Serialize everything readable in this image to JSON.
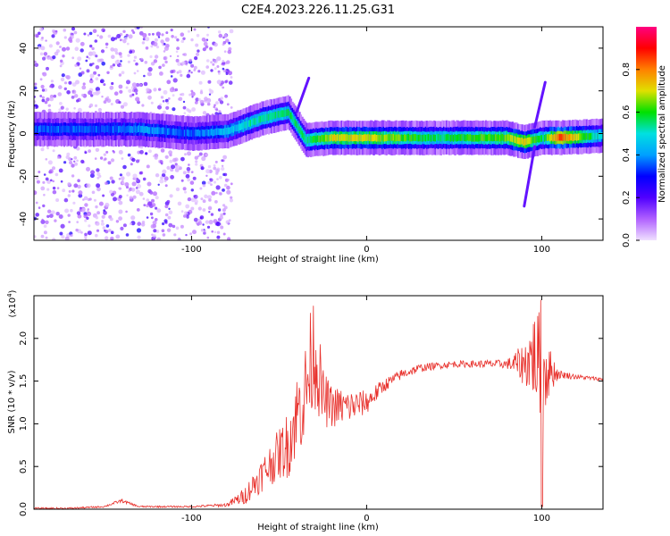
{
  "title": "C2E4.2023.226.11.25.G31",
  "colors": {
    "snr_line": "#e8322d",
    "axis": "#000000",
    "colorbar": [
      "#f0e0ff",
      "#b060ff",
      "#5000ff",
      "#0000ff",
      "#00a0ff",
      "#00e0e0",
      "#00e000",
      "#e0e000",
      "#ff8000",
      "#ff0000",
      "#ff0080"
    ]
  },
  "chart_data": [
    {
      "type": "heatmap",
      "xlabel": "Height of straight line (km)",
      "ylabel": "Frequency (Hz)",
      "xlim": [
        -190,
        135
      ],
      "ylim": [
        -50,
        50
      ],
      "x_ticks": [
        -100,
        0,
        100
      ],
      "x_tick_labels": [
        "-100",
        "0",
        "100"
      ],
      "y_ticks": [
        -40,
        -20,
        0,
        20,
        40
      ],
      "y_tick_labels": [
        "-40",
        "-20",
        "0",
        "20",
        "40"
      ],
      "colorbar": {
        "label": "Normalized spectral amplitude",
        "range": [
          0,
          1
        ],
        "ticks": [
          0.0,
          0.2,
          0.4,
          0.6,
          0.8
        ],
        "tick_labels": [
          "0.0",
          "0.2",
          "0.4",
          "0.6",
          "0.8"
        ]
      },
      "ridge": [
        {
          "x": -190,
          "f": 2,
          "a": 0.35
        },
        {
          "x": -150,
          "f": 2,
          "a": 0.35
        },
        {
          "x": -130,
          "f": 2,
          "a": 0.4
        },
        {
          "x": -100,
          "f": 0,
          "a": 0.35
        },
        {
          "x": -80,
          "f": 1,
          "a": 0.45
        },
        {
          "x": -60,
          "f": 7,
          "a": 0.55
        },
        {
          "x": -45,
          "f": 10,
          "a": 0.55
        },
        {
          "x": -35,
          "f": -3,
          "a": 0.55
        },
        {
          "x": -20,
          "f": -2,
          "a": 0.7
        },
        {
          "x": 0,
          "f": -2,
          "a": 0.7
        },
        {
          "x": 40,
          "f": -2,
          "a": 0.55
        },
        {
          "x": 80,
          "f": -2,
          "a": 0.65
        },
        {
          "x": 90,
          "f": -4,
          "a": 0.75
        },
        {
          "x": 100,
          "f": -2,
          "a": 0.55
        },
        {
          "x": 110,
          "f": -2,
          "a": 0.85
        },
        {
          "x": 135,
          "f": -1,
          "a": 0.45
        }
      ],
      "streaks": [
        {
          "x0": -40,
          "f0": 10,
          "x1": -33,
          "f1": 26
        },
        {
          "x0": 96,
          "f0": 3,
          "x1": 102,
          "f1": 24
        },
        {
          "x0": 96,
          "f0": -6,
          "x1": 90,
          "f1": -34
        }
      ]
    },
    {
      "type": "line",
      "xlabel": "Height of straight line (km)",
      "ylabel": "SNR (10 * v/v)",
      "y_scale_label": "(x10",
      "y_scale_exponent": "4",
      "y_scale_suffix": ")",
      "xlim": [
        -190,
        135
      ],
      "ylim": [
        0,
        2.5
      ],
      "x_ticks": [
        -100,
        0,
        100
      ],
      "x_tick_labels": [
        "-100",
        "0",
        "100"
      ],
      "y_ticks": [
        0.0,
        0.5,
        1.0,
        1.5,
        2.0
      ],
      "y_tick_labels": [
        "0.0",
        "0.5",
        "1.0",
        "1.5",
        "2.0"
      ],
      "series": [
        {
          "x": [
            -190,
            -170,
            -150,
            -140,
            -130,
            -100,
            -80,
            -70,
            -60,
            -50,
            -45,
            -40,
            -35,
            -30,
            -25,
            -20,
            -10,
            0,
            10,
            20,
            30,
            40,
            50,
            60,
            70,
            80,
            90,
            95,
            100,
            105,
            110,
            120,
            135
          ],
          "y": [
            0.01,
            0.01,
            0.03,
            0.1,
            0.03,
            0.03,
            0.05,
            0.15,
            0.4,
            0.65,
            0.75,
            1.1,
            1.35,
            1.9,
            1.3,
            1.2,
            1.2,
            1.25,
            1.45,
            1.58,
            1.65,
            1.68,
            1.7,
            1.7,
            1.7,
            1.7,
            1.7,
            1.8,
            1.65,
            1.62,
            1.58,
            1.55,
            1.52
          ],
          "amp": [
            0.01,
            0.01,
            0.01,
            0.02,
            0.01,
            0.01,
            0.02,
            0.1,
            0.2,
            0.3,
            0.4,
            0.5,
            0.6,
            0.7,
            0.35,
            0.25,
            0.2,
            0.14,
            0.08,
            0.06,
            0.05,
            0.04,
            0.04,
            0.04,
            0.05,
            0.05,
            0.25,
            0.5,
            0.7,
            0.25,
            0.05,
            0.03,
            0.02
          ]
        }
      ]
    }
  ]
}
